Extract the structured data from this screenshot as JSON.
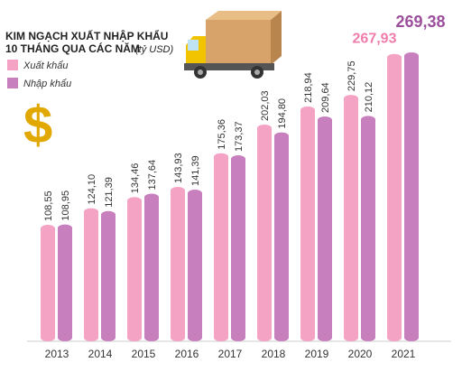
{
  "chart_data": {
    "type": "bar",
    "title": "KIM NGẠCH XUẤT NHẬP KHẨU",
    "subtitle": "10 THÁNG QUA CÁC NĂM",
    "unit_note": "(tỷ USD)",
    "categories": [
      "2013",
      "2014",
      "2015",
      "2016",
      "2017",
      "2018",
      "2019",
      "2020",
      "2021"
    ],
    "series": [
      {
        "name": "Xuất khẩu",
        "color": "#f4a3c4",
        "label_color": "#ef7cab",
        "values": [
          108.55,
          124.1,
          134.46,
          143.93,
          175.36,
          202.03,
          218.94,
          229.75,
          267.93
        ],
        "value_labels": [
          "108,55",
          "124,10",
          "134,46",
          "143,93",
          "175,36",
          "202,03",
          "218,94",
          "229,75",
          "267,93"
        ]
      },
      {
        "name": "Nhập khẩu",
        "color": "#c77fbd",
        "label_color": "#9b4e9b",
        "values": [
          108.95,
          121.39,
          137.64,
          141.39,
          173.37,
          194.8,
          209.64,
          210.12,
          269.38
        ],
        "value_labels": [
          "108,95",
          "121,39",
          "137,64",
          "141,39",
          "173,37",
          "194,80",
          "209,64",
          "210,12",
          "269,38"
        ]
      }
    ]
  }
}
